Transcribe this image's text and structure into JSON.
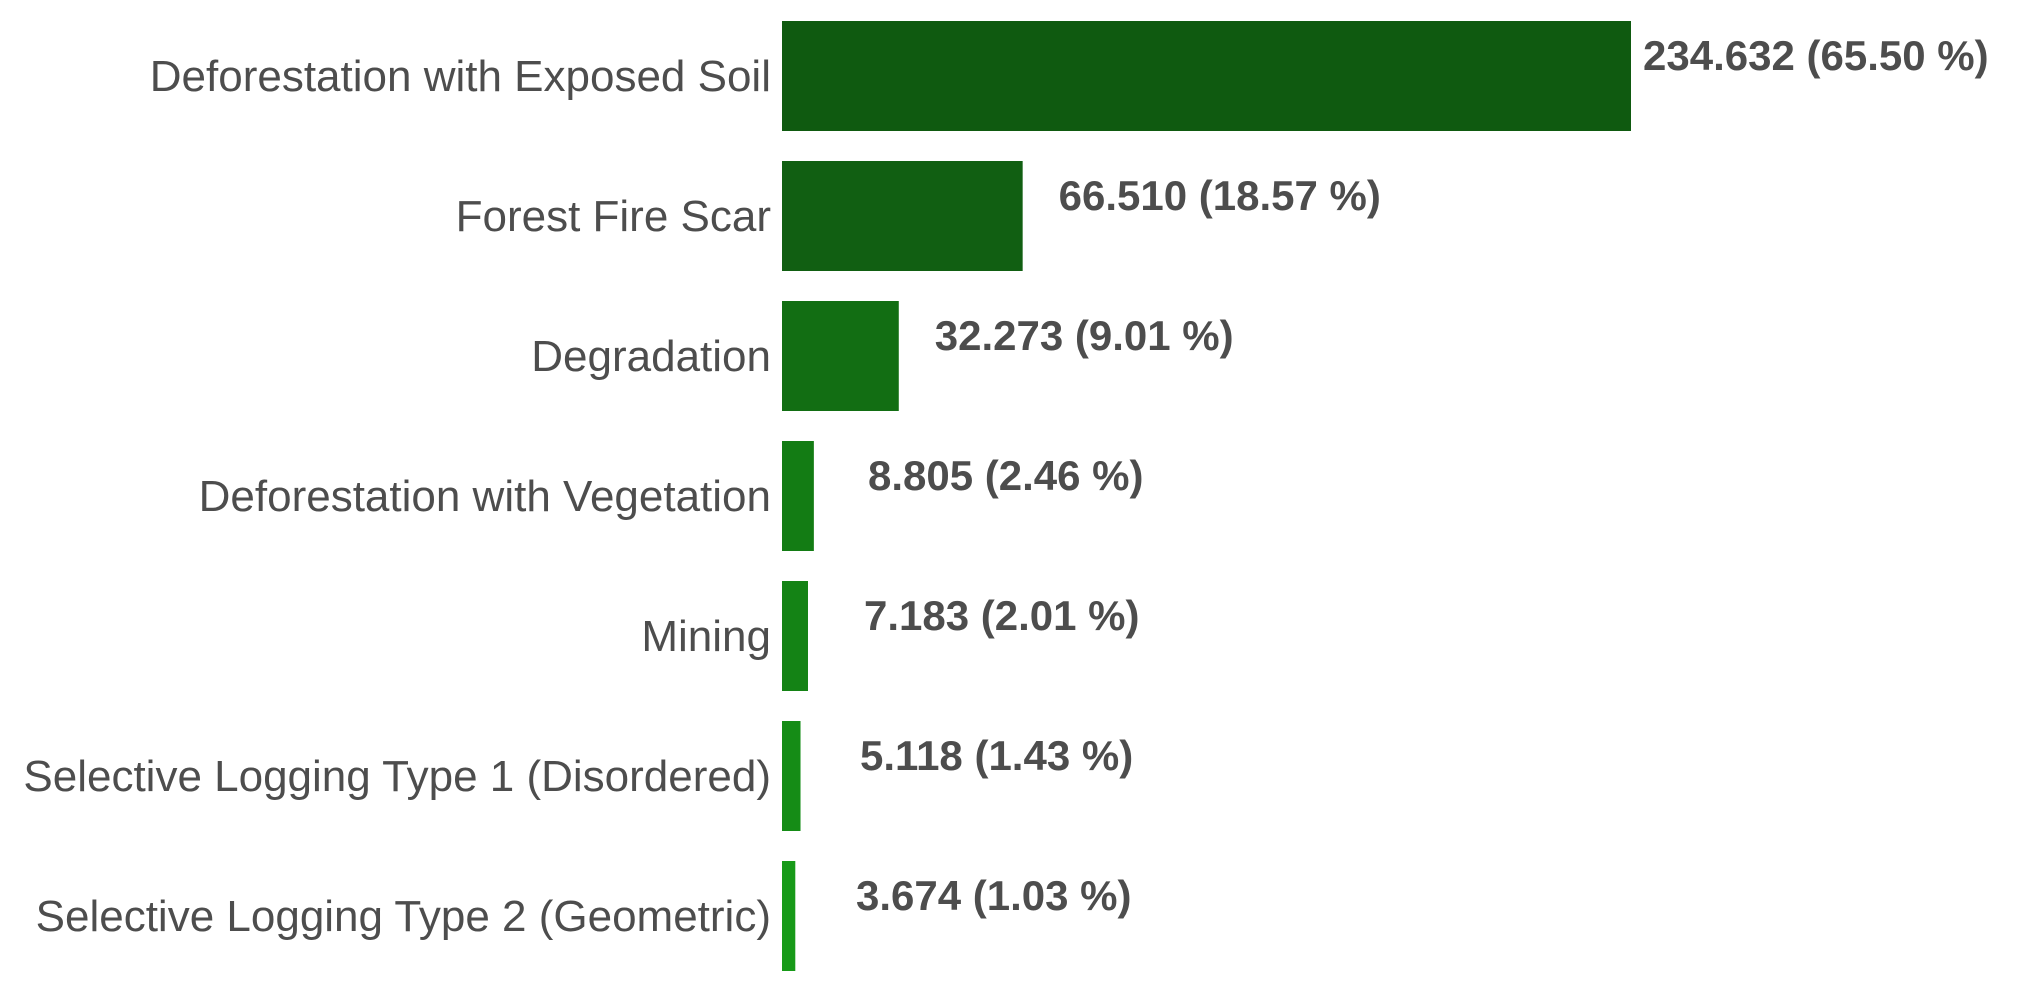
{
  "chart_data": {
    "type": "bar",
    "orientation": "horizontal",
    "categories": [
      "Deforestation with Exposed Soil",
      "Forest Fire Scar",
      "Degradation",
      "Deforestation with Vegetation",
      "Mining",
      "Selective Logging Type 1 (Disordered)",
      "Selective Logging Type 2 (Geometric)"
    ],
    "values": [
      234.632,
      66.51,
      32.273,
      8.805,
      7.183,
      5.118,
      3.674
    ],
    "percentages": [
      65.5,
      18.57,
      9.01,
      2.46,
      2.01,
      1.43,
      1.03
    ],
    "data_labels": [
      "234.632 (65.50 %)",
      "66.510 (18.57 %)",
      "32.273 (9.01 %)",
      "8.805 (2.46 %)",
      "7.183 (2.01 %)",
      "5.118 (1.43 %)",
      "3.674 (1.03 %)"
    ],
    "colors": [
      "#0f5a10",
      "#115f12",
      "#126e13",
      "#137c14",
      "#148315",
      "#158c16",
      "#179a18"
    ],
    "xlim": [
      0,
      234.632
    ],
    "grid": false,
    "legend": "none"
  }
}
